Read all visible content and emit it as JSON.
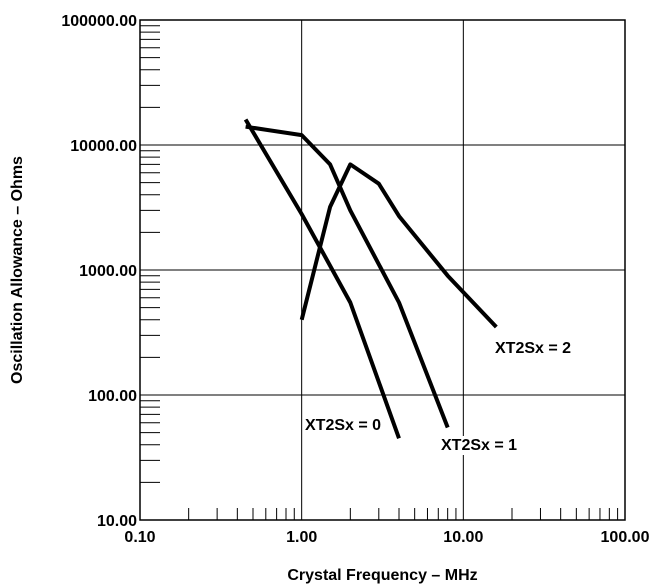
{
  "chart_data": {
    "type": "line",
    "title": "",
    "xlabel": "Crystal Frequency – MHz",
    "ylabel": "Oscillation Allowance – Ohms",
    "x_scale": "log",
    "y_scale": "log",
    "xlim": [
      0.1,
      100
    ],
    "ylim": [
      10,
      100000
    ],
    "grid": true,
    "x_ticks": [
      0.1,
      1,
      10,
      100
    ],
    "x_tick_labels": [
      "0.10",
      "1.00",
      "10.00",
      "100.00"
    ],
    "y_ticks": [
      10,
      100,
      1000,
      10000,
      100000
    ],
    "y_tick_labels": [
      "10.00",
      "100.00",
      "1000.00",
      "10000.00",
      "100000.00"
    ],
    "series": [
      {
        "name": "XT2Sx = 0",
        "points": [
          [
            0.45,
            16000
          ],
          [
            1.0,
            2800
          ],
          [
            2.0,
            550
          ],
          [
            4.0,
            45
          ]
        ]
      },
      {
        "name": "XT2Sx = 1",
        "points": [
          [
            0.45,
            14000
          ],
          [
            1.0,
            12000
          ],
          [
            1.5,
            7000
          ],
          [
            2.0,
            3000
          ],
          [
            4.0,
            550
          ],
          [
            8.0,
            55
          ]
        ]
      },
      {
        "name": "XT2Sx = 2",
        "points": [
          [
            1.0,
            400
          ],
          [
            1.5,
            3200
          ],
          [
            2.0,
            7000
          ],
          [
            3.0,
            4900
          ],
          [
            4.0,
            2700
          ],
          [
            8.0,
            900
          ],
          [
            16.0,
            350
          ]
        ]
      }
    ],
    "colors": {
      "line": "#000000",
      "grid": "#000000",
      "background": "#ffffff"
    }
  }
}
